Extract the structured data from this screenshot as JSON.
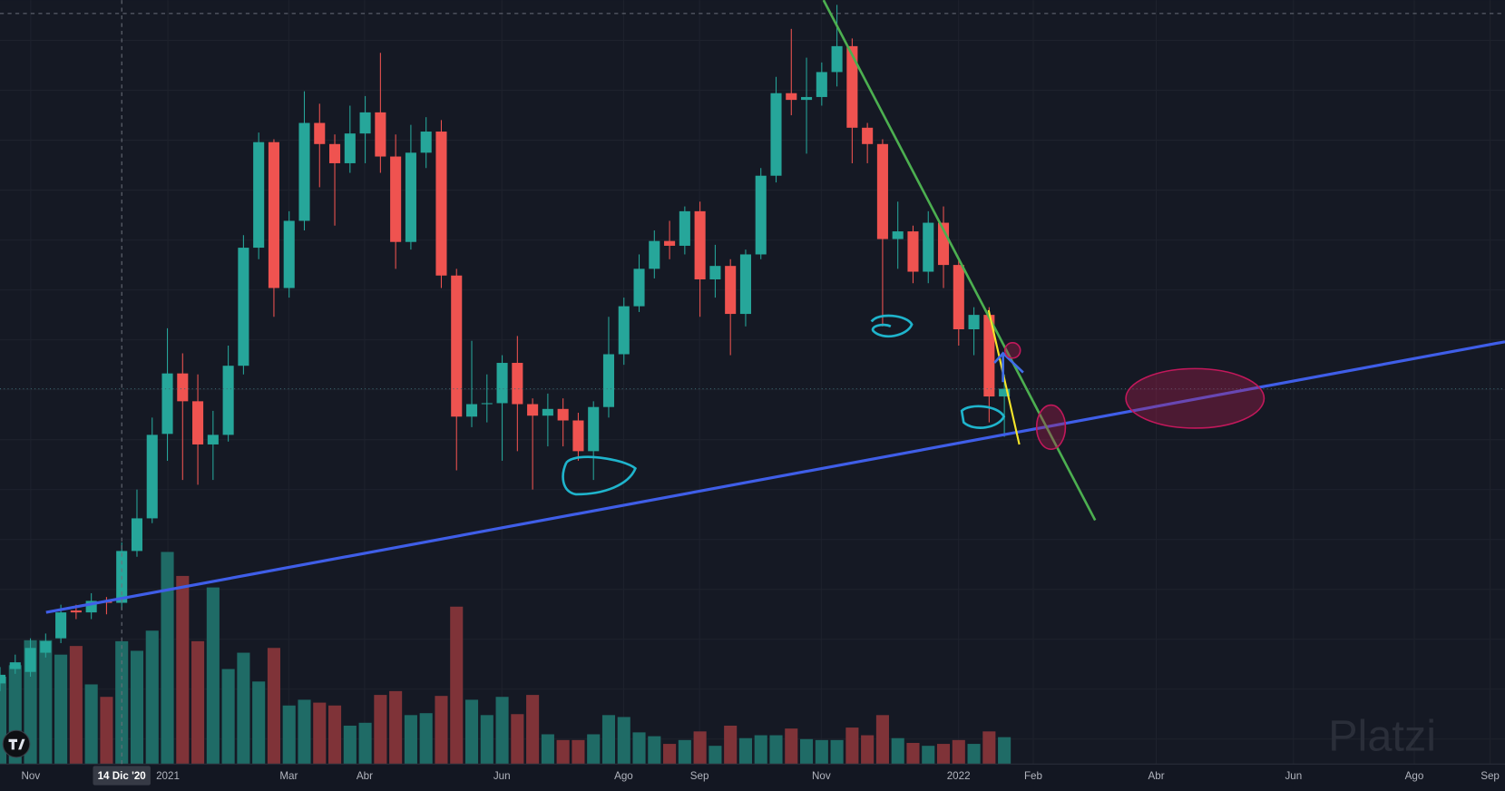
{
  "chart_data": {
    "type": "candlestick",
    "ohlc": [
      [
        88,
        105,
        80,
        97
      ],
      [
        103,
        118,
        98,
        110
      ],
      [
        100,
        135,
        95,
        125
      ],
      [
        120,
        140,
        115,
        132
      ],
      [
        135,
        170,
        130,
        162
      ],
      [
        164,
        170,
        155,
        162
      ],
      [
        162,
        182,
        155,
        174
      ],
      [
        174,
        178,
        160,
        172
      ],
      [
        172,
        235,
        165,
        226
      ],
      [
        226,
        290,
        220,
        260
      ],
      [
        260,
        365,
        255,
        347
      ],
      [
        348,
        458,
        320,
        411
      ],
      [
        411,
        432,
        300,
        382
      ],
      [
        382,
        410,
        295,
        337
      ],
      [
        337,
        372,
        300,
        347
      ],
      [
        347,
        440,
        340,
        419
      ],
      [
        419,
        555,
        410,
        542
      ],
      [
        542,
        662,
        530,
        652
      ],
      [
        652,
        655,
        470,
        500
      ],
      [
        500,
        580,
        490,
        570
      ],
      [
        570,
        705,
        560,
        672
      ],
      [
        672,
        692,
        605,
        650
      ],
      [
        650,
        660,
        565,
        630
      ],
      [
        630,
        690,
        620,
        661
      ],
      [
        661,
        700,
        630,
        683
      ],
      [
        683,
        745,
        620,
        637
      ],
      [
        637,
        660,
        520,
        548
      ],
      [
        548,
        670,
        540,
        641
      ],
      [
        641,
        678,
        625,
        663
      ],
      [
        663,
        675,
        500,
        513
      ],
      [
        513,
        520,
        310,
        366
      ],
      [
        366,
        445,
        355,
        379
      ],
      [
        379,
        410,
        360,
        380
      ],
      [
        380,
        430,
        320,
        422
      ],
      [
        422,
        450,
        330,
        379
      ],
      [
        379,
        385,
        290,
        367
      ],
      [
        367,
        390,
        335,
        374
      ],
      [
        374,
        385,
        335,
        362
      ],
      [
        362,
        370,
        320,
        330
      ],
      [
        330,
        382,
        300,
        376
      ],
      [
        376,
        470,
        365,
        431
      ],
      [
        431,
        490,
        420,
        481
      ],
      [
        481,
        535,
        475,
        520
      ],
      [
        520,
        560,
        510,
        549
      ],
      [
        549,
        570,
        530,
        544
      ],
      [
        544,
        585,
        535,
        580
      ],
      [
        580,
        590,
        470,
        509
      ],
      [
        509,
        545,
        490,
        523
      ],
      [
        523,
        530,
        430,
        473
      ],
      [
        473,
        540,
        460,
        535
      ],
      [
        535,
        625,
        530,
        617
      ],
      [
        617,
        720,
        610,
        703
      ],
      [
        703,
        770,
        680,
        696
      ],
      [
        696,
        740,
        640,
        699
      ],
      [
        699,
        735,
        690,
        725
      ],
      [
        725,
        795,
        710,
        752
      ],
      [
        752,
        760,
        630,
        667
      ],
      [
        667,
        672,
        630,
        650
      ],
      [
        650,
        655,
        460,
        551
      ],
      [
        551,
        590,
        520,
        559
      ],
      [
        559,
        565,
        505,
        517
      ],
      [
        517,
        580,
        505,
        568
      ],
      [
        568,
        585,
        500,
        524
      ],
      [
        524,
        530,
        440,
        457
      ],
      [
        457,
        480,
        430,
        472
      ],
      [
        472,
        480,
        360,
        387
      ],
      [
        387,
        410,
        345,
        395
      ]
    ],
    "volume": [
      91,
      103,
      129,
      129,
      114,
      123,
      83,
      70,
      128,
      118,
      139,
      221,
      196,
      128,
      184,
      99,
      116,
      86,
      121,
      61,
      67,
      64,
      61,
      40,
      43,
      72,
      76,
      51,
      53,
      71,
      164,
      67,
      51,
      70,
      52,
      72,
      31,
      25,
      25,
      31,
      51,
      49,
      33,
      29,
      21,
      25,
      34,
      19,
      40,
      27,
      30,
      30,
      37,
      26,
      25,
      25,
      38,
      30,
      51,
      27,
      22,
      19,
      21,
      25,
      21,
      34,
      28
    ],
    "xlim": [
      0,
      98.9
    ],
    "ylim": [
      0,
      800
    ],
    "volume_ylim": [
      0,
      796
    ],
    "xticks": [
      {
        "value": 2.02,
        "label": "Nov"
      },
      {
        "value": 11.03,
        "label": "2021"
      },
      {
        "value": 18.98,
        "label": "Mar"
      },
      {
        "value": 23.96,
        "label": "Abr"
      },
      {
        "value": 32.98,
        "label": "Jun"
      },
      {
        "value": 40.98,
        "label": "Ago"
      },
      {
        "value": 45.97,
        "label": "Sep"
      },
      {
        "value": 53.97,
        "label": "Nov"
      },
      {
        "value": 62.99,
        "label": "2022"
      },
      {
        "value": 67.9,
        "label": "Feb"
      },
      {
        "value": 75.98,
        "label": "Abr"
      },
      {
        "value": 85.0,
        "label": "Jun"
      },
      {
        "value": 92.94,
        "label": "Ago"
      },
      {
        "value": 97.92,
        "label": "Sep"
      }
    ],
    "crosshair": {
      "value": 8,
      "label": "14 Dic '20"
    },
    "up_color": "#26a69a",
    "down_color": "#ef5350",
    "volume_up_color": "#1f6b66",
    "volume_down_color": "#7f3338",
    "watermark": "Platzi"
  }
}
